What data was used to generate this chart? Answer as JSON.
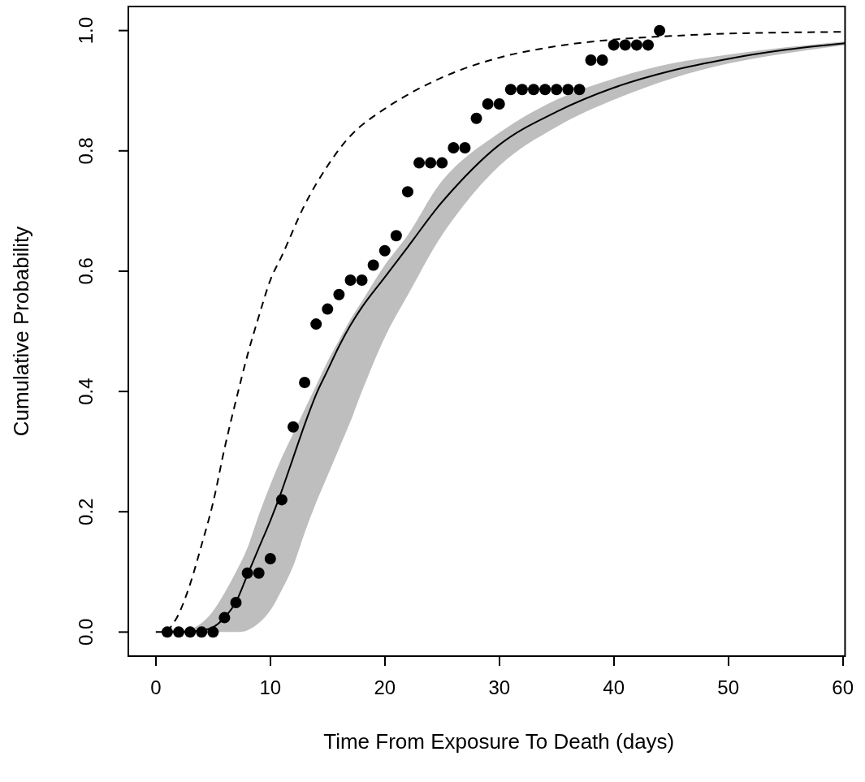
{
  "chart_data": {
    "type": "scatter",
    "xlabel": "Time From Exposure To Death (days)",
    "ylabel": "Cumulative Probability",
    "xlim": [
      -2.4,
      60.2
    ],
    "ylim": [
      -0.04,
      1.04
    ],
    "xticks": [
      0,
      10,
      20,
      30,
      40,
      50,
      60
    ],
    "yticks": [
      {
        "value": 0,
        "label": "0.0"
      },
      {
        "value": 0.2,
        "label": "0.2"
      },
      {
        "value": 0.4,
        "label": "0.4"
      },
      {
        "value": 0.6,
        "label": "0.6"
      },
      {
        "value": 0.8,
        "label": "0.8"
      },
      {
        "value": 1,
        "label": "1.0"
      }
    ],
    "grid": false,
    "series": [
      {
        "type": "line",
        "color": "#000000",
        "line_style": "solid",
        "marker": "none",
        "x": [
          0,
          1,
          2,
          3,
          4,
          5,
          6,
          7,
          8,
          9,
          10,
          11,
          12,
          13,
          14,
          15,
          16,
          17,
          18,
          20,
          22,
          25,
          30,
          35,
          40,
          45,
          50,
          55,
          60.2
        ],
        "values": [
          0,
          0,
          0,
          0.001,
          0.003,
          0.008,
          0.024,
          0.05,
          0.095,
          0.14,
          0.185,
          0.235,
          0.29,
          0.345,
          0.395,
          0.435,
          0.475,
          0.51,
          0.54,
          0.59,
          0.64,
          0.715,
          0.81,
          0.865,
          0.905,
          0.933,
          0.953,
          0.968,
          0.979
        ],
        "lower": [
          0,
          0,
          0,
          0,
          0,
          0,
          0,
          0,
          0.003,
          0.015,
          0.036,
          0.07,
          0.11,
          0.165,
          0.215,
          0.26,
          0.305,
          0.35,
          0.4,
          0.49,
          0.56,
          0.66,
          0.775,
          0.84,
          0.885,
          0.92,
          0.945,
          0.962,
          0.976
        ],
        "upper": [
          0,
          0,
          0,
          0.005,
          0.015,
          0.035,
          0.065,
          0.1,
          0.14,
          0.195,
          0.245,
          0.29,
          0.33,
          0.37,
          0.41,
          0.45,
          0.485,
          0.52,
          0.55,
          0.61,
          0.66,
          0.75,
          0.83,
          0.885,
          0.92,
          0.945,
          0.96,
          0.972,
          0.982
        ]
      },
      {
        "type": "line",
        "color": "#000000",
        "line_style": "dashed",
        "marker": "none",
        "x": [
          1,
          2,
          3,
          4,
          5,
          6,
          7,
          8,
          9,
          10,
          11,
          13,
          15,
          17,
          20,
          25,
          30,
          35,
          40,
          45,
          50,
          60.2
        ],
        "values": [
          0,
          0.03,
          0.08,
          0.145,
          0.215,
          0.305,
          0.385,
          0.46,
          0.525,
          0.585,
          0.625,
          0.71,
          0.775,
          0.825,
          0.87,
          0.922,
          0.955,
          0.974,
          0.985,
          0.991,
          0.995,
          0.998
        ]
      },
      {
        "color": "#000000",
        "marker": "circle",
        "x": [
          1,
          2,
          3,
          4,
          5,
          6,
          7,
          8,
          9,
          10,
          11,
          12,
          13,
          14,
          15,
          16,
          17,
          18,
          19,
          20,
          21,
          22,
          23,
          24,
          25,
          26,
          27,
          28,
          29,
          30,
          31,
          32,
          33,
          34,
          35,
          36,
          37,
          38,
          39,
          40,
          41,
          42,
          43,
          44
        ],
        "values": [
          0,
          0,
          0,
          0,
          0,
          0.024,
          0.049,
          0.098,
          0.098,
          0.122,
          0.22,
          0.341,
          0.415,
          0.512,
          0.537,
          0.561,
          0.585,
          0.585,
          0.61,
          0.634,
          0.659,
          0.732,
          0.78,
          0.78,
          0.78,
          0.805,
          0.805,
          0.854,
          0.878,
          0.878,
          0.902,
          0.902,
          0.902,
          0.902,
          0.902,
          0.902,
          0.902,
          0.951,
          0.951,
          0.976,
          0.976,
          0.976,
          0.976,
          1
        ]
      }
    ]
  }
}
